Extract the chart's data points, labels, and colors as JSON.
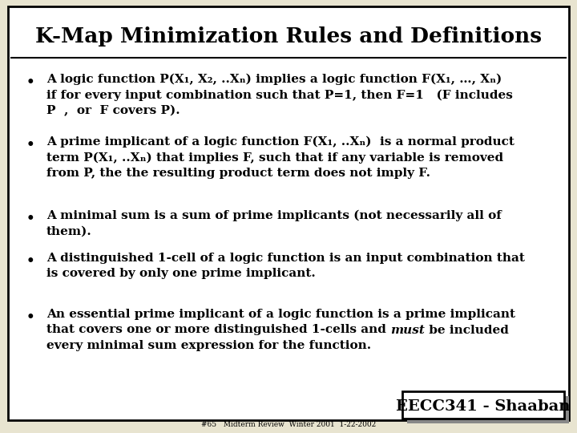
{
  "title": "K-Map Minimization Rules and Definitions",
  "bg_color": "#e8e4d0",
  "box_color": "white",
  "border_color": "#000000",
  "title_fontsize": 19,
  "body_fontsize": 11,
  "footer_label": "EECC341 - Shaaban",
  "footer_small": "#65   Midterm Review  Winter 2001  1-22-2002",
  "bullet_items": [
    {
      "lines": [
        "A logic function P(X₁, X₂, ..Xₙ) implies a logic function F(X₁, …, Xₙ)",
        "if for every input combination such that P=1, then F=1   (F includes",
        "P  ,  or  F covers P)."
      ]
    },
    {
      "lines": [
        "A prime implicant of a logic function F(X₁, ..Xₙ)  is a normal product",
        "term P(X₁, ..Xₙ) that implies F, such that if any variable is removed",
        "from P, the the resulting product term does not imply F."
      ]
    },
    {
      "lines": [
        "A minimal sum is a sum of prime implicants (not necessarily all of",
        "them)."
      ]
    },
    {
      "lines": [
        "A distinguished 1-cell of a logic function is an input combination that",
        "is covered by only one prime implicant."
      ]
    },
    {
      "lines": [
        "An essential prime implicant of a logic function is a prime implicant",
        "that covers one or more distinguished 1-cells and ––must–– be included",
        "every minimal sum expression for the function."
      ],
      "must_line": 1,
      "before_must": "that covers one or more distinguished 1-cells and ",
      "after_must": " be included"
    }
  ]
}
